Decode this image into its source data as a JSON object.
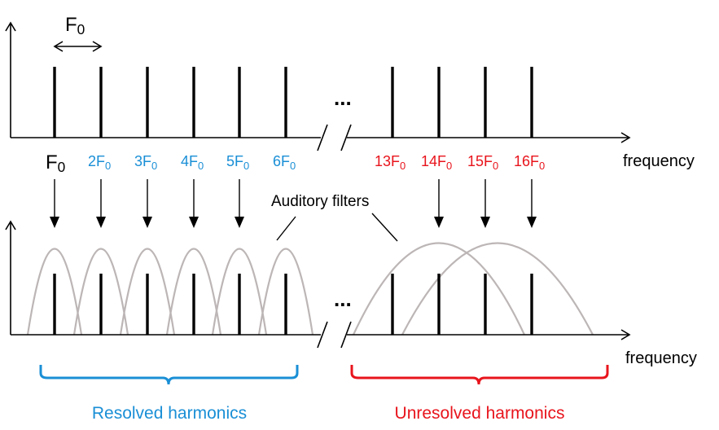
{
  "top_spectrum": {
    "spacing_label": "F0",
    "ellipsis": "...",
    "axis_label": "frequency"
  },
  "harmonic_labels": [
    {
      "id": "f0",
      "text": "F0",
      "color": "black"
    },
    {
      "id": "2f0",
      "text": "2F0",
      "color": "blue"
    },
    {
      "id": "3f0",
      "text": "3F0",
      "color": "blue"
    },
    {
      "id": "4f0",
      "text": "4F0",
      "color": "blue"
    },
    {
      "id": "5f0",
      "text": "5F0",
      "color": "blue"
    },
    {
      "id": "6f0",
      "text": "6F0",
      "color": "blue"
    },
    {
      "id": "13f0",
      "text": "13F0",
      "color": "red"
    },
    {
      "id": "14f0",
      "text": "14F0",
      "color": "red"
    },
    {
      "id": "15f0",
      "text": "15F0",
      "color": "red"
    },
    {
      "id": "16f0",
      "text": "16F0",
      "color": "red"
    }
  ],
  "bottom_spectrum": {
    "filters_label": "Auditory filters",
    "ellipsis": "...",
    "axis_label": "frequency"
  },
  "groups": {
    "resolved": "Resolved harmonics",
    "unresolved": "Unresolved harmonics"
  },
  "colors": {
    "resolved": "#1a8fd6",
    "unresolved": "#e8141c",
    "filter": "#bdb6b6"
  }
}
